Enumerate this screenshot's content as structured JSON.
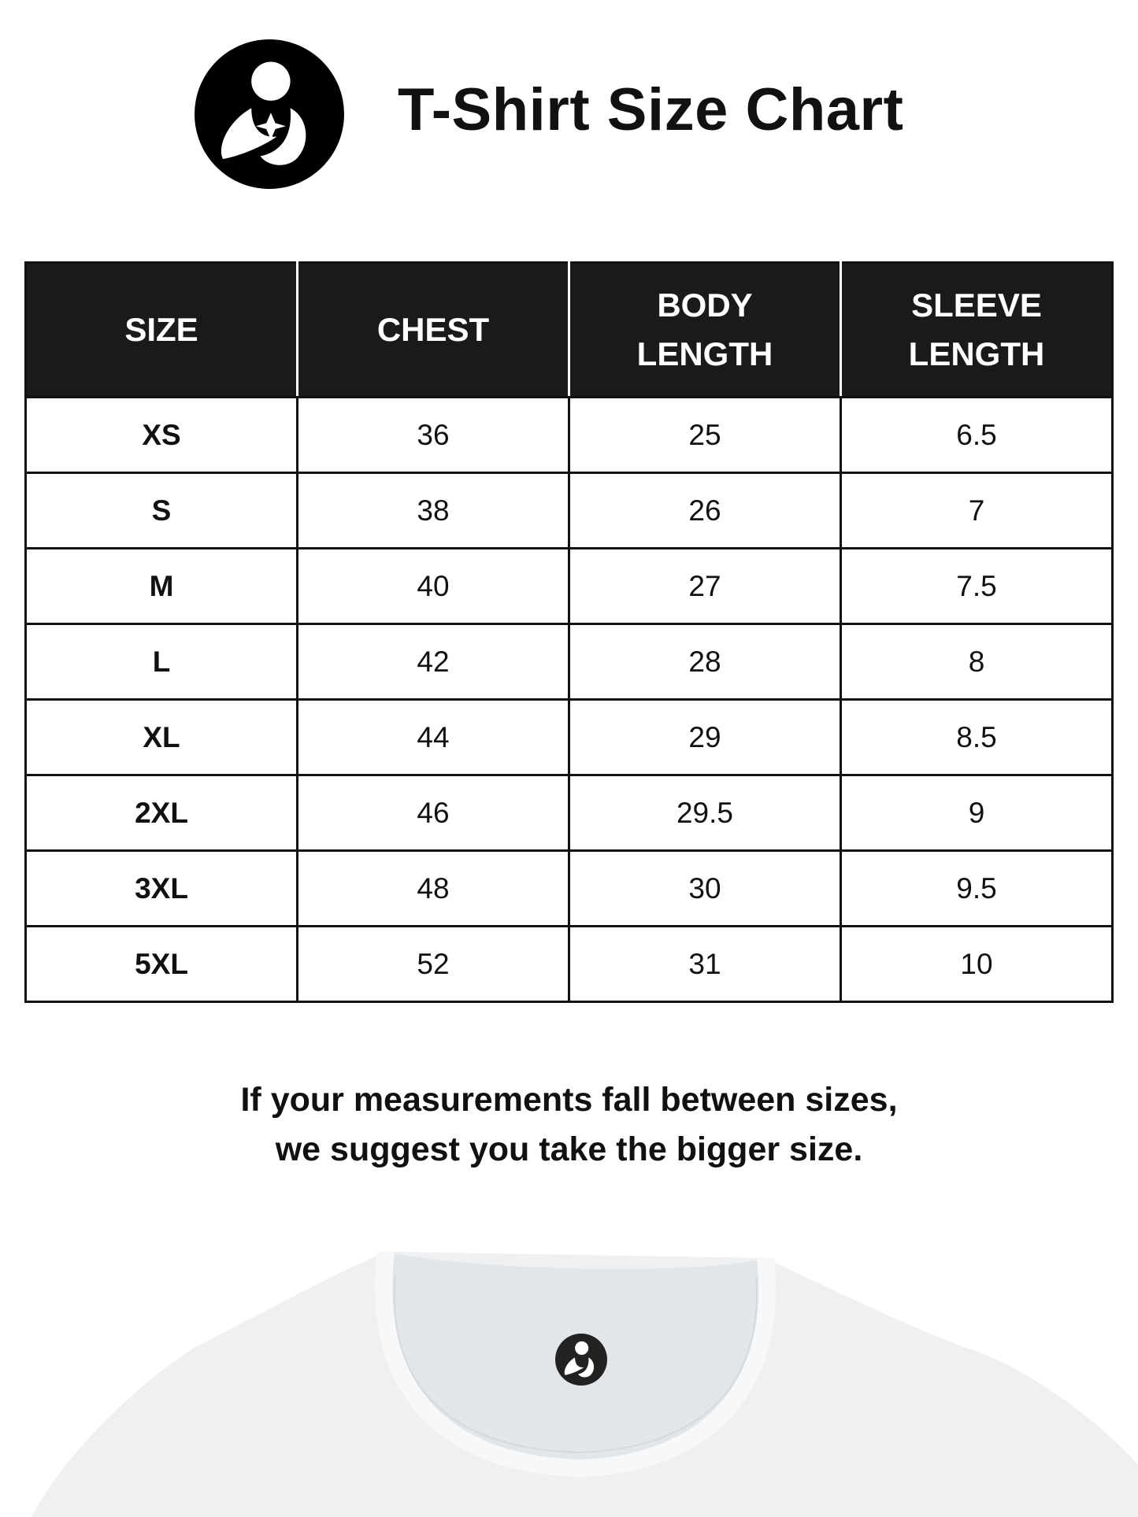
{
  "header": {
    "title": "T-Shirt Size Chart",
    "logo_icon": "mother-child-logo-icon"
  },
  "table": {
    "columns": [
      [
        "SIZE"
      ],
      [
        "CHEST"
      ],
      [
        "BODY",
        "LENGTH"
      ],
      [
        "SLEEVE",
        "LENGTH"
      ]
    ],
    "rows": [
      [
        "XS",
        "36",
        "25",
        "6.5"
      ],
      [
        "S",
        "38",
        "26",
        "7"
      ],
      [
        "M",
        "40",
        "27",
        "7.5"
      ],
      [
        "L",
        "42",
        "28",
        "8"
      ],
      [
        "XL",
        "44",
        "29",
        "8.5"
      ],
      [
        "2XL",
        "46",
        "29.5",
        "9"
      ],
      [
        "3XL",
        "48",
        "30",
        "9.5"
      ],
      [
        "5XL",
        "52",
        "31",
        "10"
      ]
    ]
  },
  "note": {
    "line1": "If your measurements fall between sizes,",
    "line2": "we suggest you take the bigger size."
  },
  "colors": {
    "header_bg": "#1a1a1a",
    "text": "#111111",
    "shirt": "#eef0f2"
  }
}
